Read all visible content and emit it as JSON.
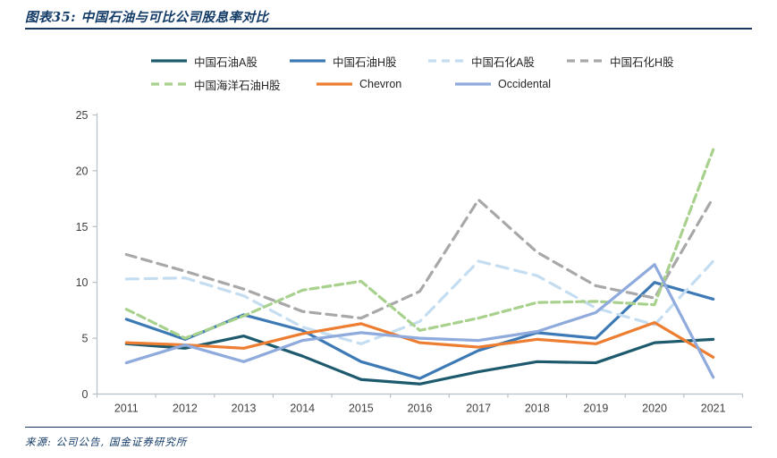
{
  "header": {
    "title": "图表35: 中国石油与可比公司股息率对比"
  },
  "footer": {
    "source": "来源: 公司公告, 国金证券研究所"
  },
  "colors": {
    "rule": "#17375e",
    "axis_line": "#b7bfc7",
    "tick_label": "#3f3f3f"
  },
  "chart_data": {
    "type": "line",
    "title": "中国石油与可比公司股息率对比",
    "x": [
      "2011",
      "2012",
      "2013",
      "2014",
      "2015",
      "2016",
      "2017",
      "2018",
      "2019",
      "2020",
      "2021"
    ],
    "ylim": [
      0,
      25
    ],
    "yticks": [
      0,
      5,
      10,
      15,
      20,
      25
    ],
    "grid": false,
    "legend_position": "top",
    "series": [
      {
        "name": "中国石油A股",
        "color": "#1e5a6e",
        "dash": null,
        "values": [
          4.5,
          4.1,
          5.2,
          3.4,
          1.3,
          0.9,
          2.0,
          2.9,
          2.8,
          4.6,
          4.9
        ]
      },
      {
        "name": "中国石油H股",
        "color": "#3d7ab5",
        "dash": null,
        "values": [
          6.7,
          4.9,
          7.1,
          5.7,
          2.9,
          1.4,
          3.9,
          5.5,
          5.0,
          10.0,
          8.5
        ]
      },
      {
        "name": "中国石化A股",
        "color": "#c5ddf1",
        "dash": "13 8",
        "values": [
          10.3,
          10.4,
          8.8,
          6.0,
          4.5,
          6.5,
          11.9,
          10.6,
          7.7,
          6.2,
          11.9
        ]
      },
      {
        "name": "中国石化H股",
        "color": "#a8a8a8",
        "dash": "11 7",
        "values": [
          12.5,
          11.0,
          9.4,
          7.4,
          6.8,
          9.2,
          17.4,
          12.7,
          9.7,
          8.6,
          17.6
        ]
      },
      {
        "name": "中国海洋石油H股",
        "color": "#a9d18e",
        "dash": "9 5",
        "values": [
          7.6,
          5.0,
          7.0,
          9.3,
          10.1,
          5.7,
          6.8,
          8.2,
          8.3,
          8.0,
          21.9
        ]
      },
      {
        "name": "Chevron",
        "color": "#ed7d31",
        "dash": null,
        "values": [
          4.6,
          4.4,
          4.1,
          5.4,
          6.3,
          4.6,
          4.2,
          4.9,
          4.5,
          6.4,
          3.3
        ]
      },
      {
        "name": "Occidental",
        "color": "#8faadc",
        "dash": null,
        "values": [
          2.8,
          4.4,
          2.9,
          4.8,
          5.5,
          5.0,
          4.8,
          5.6,
          7.3,
          11.6,
          1.5
        ]
      }
    ]
  }
}
